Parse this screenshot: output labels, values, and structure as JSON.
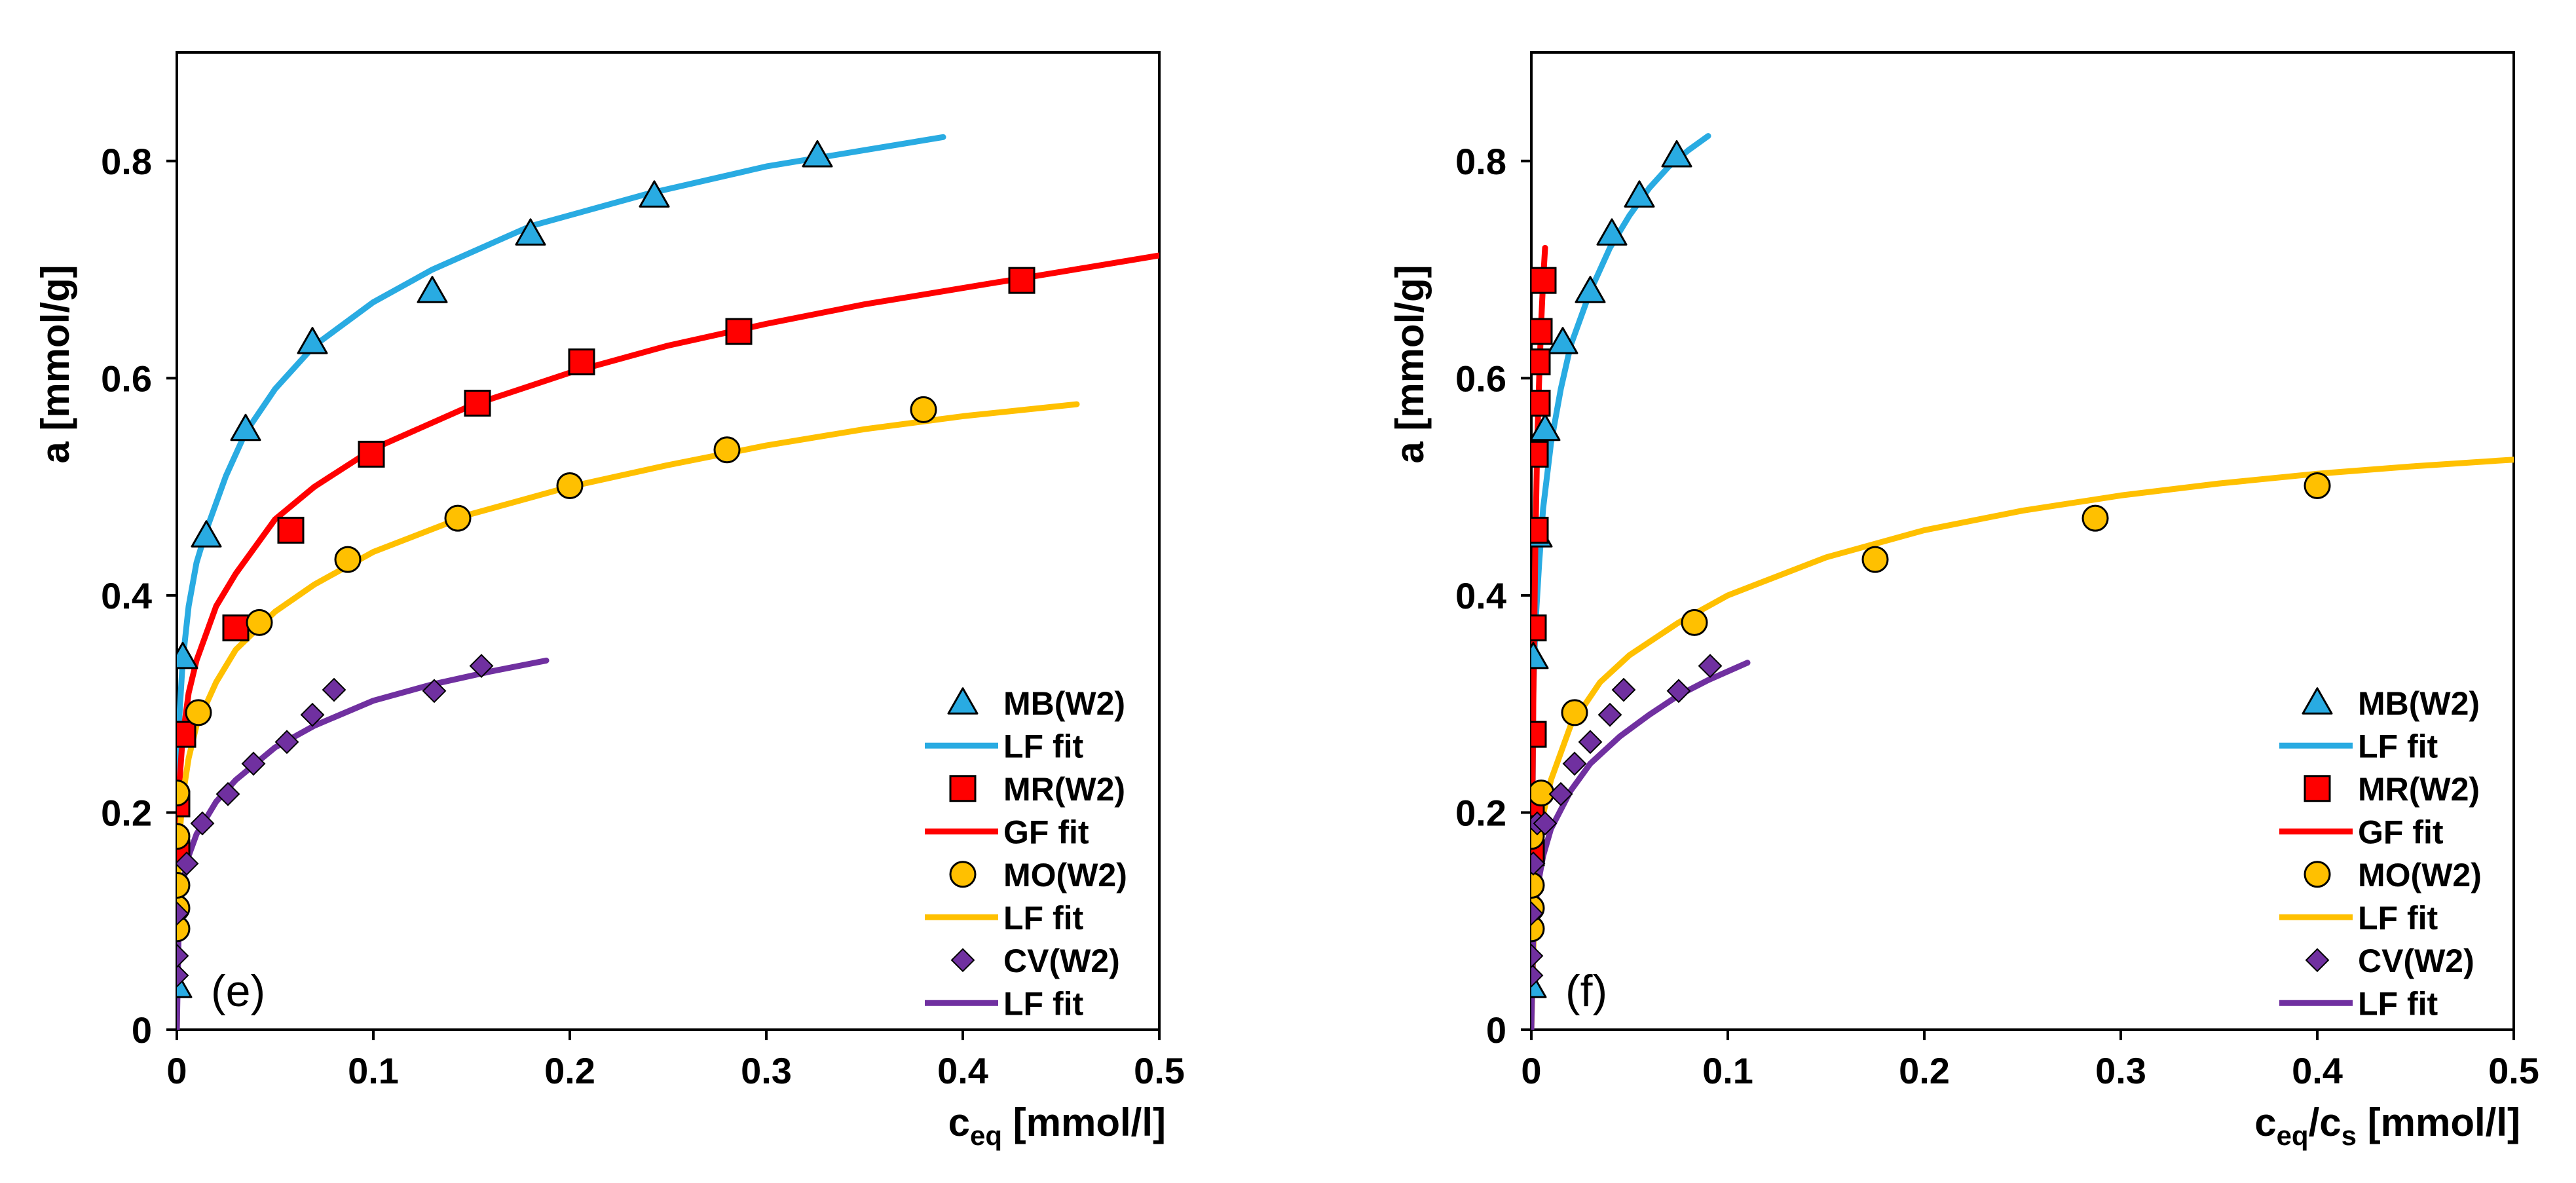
{
  "chart_data": [
    {
      "type": "scatter",
      "panel_label": "(e)",
      "xlabel": {
        "main": "c",
        "sub": "eq",
        "unit": " [mmol/l]"
      },
      "ylabel": "a [mmol/g]",
      "xlim": [
        0,
        0.5
      ],
      "ylim": [
        0,
        0.9
      ],
      "xticks": [
        0,
        0.1,
        0.2,
        0.3,
        0.4,
        0.5
      ],
      "xtick_labels": [
        "0",
        "0.1",
        "0.2",
        "0.3",
        "0.4",
        "0.5"
      ],
      "yticks": [
        0,
        0.2,
        0.4,
        0.6,
        0.8
      ],
      "ytick_labels": [
        "0",
        "0.2",
        "0.4",
        "0.6",
        "0.8"
      ],
      "legend_position": "bottom-right",
      "grid": false,
      "series": [
        {
          "name": "MB(W2)",
          "kind": "points",
          "marker": "triangle",
          "color": "#29ABE2",
          "x": [
            0,
            0.003,
            0.015,
            0.035,
            0.069,
            0.13,
            0.18,
            0.243,
            0.326
          ],
          "y": [
            0.04,
            0.343,
            0.455,
            0.553,
            0.633,
            0.68,
            0.733,
            0.768,
            0.805
          ]
        },
        {
          "name": "LF fit",
          "kind": "line",
          "color": "#29ABE2",
          "x": [
            0,
            0.001,
            0.003,
            0.006,
            0.01,
            0.015,
            0.025,
            0.035,
            0.05,
            0.07,
            0.1,
            0.13,
            0.18,
            0.24,
            0.3,
            0.35,
            0.39
          ],
          "y": [
            0,
            0.28,
            0.34,
            0.39,
            0.43,
            0.46,
            0.51,
            0.55,
            0.59,
            0.63,
            0.67,
            0.7,
            0.74,
            0.77,
            0.795,
            0.81,
            0.822
          ]
        },
        {
          "name": "MR(W2)",
          "kind": "points",
          "marker": "square",
          "color": "#FF0000",
          "x": [
            0,
            0,
            0.003,
            0.03,
            0.058,
            0.099,
            0.153,
            0.206,
            0.286,
            0.43
          ],
          "y": [
            0.163,
            0.208,
            0.272,
            0.37,
            0.46,
            0.53,
            0.577,
            0.615,
            0.643,
            0.69
          ]
        },
        {
          "name": "GF fit",
          "kind": "line",
          "color": "#FF0000",
          "x": [
            0,
            0.001,
            0.003,
            0.006,
            0.01,
            0.02,
            0.03,
            0.05,
            0.07,
            0.1,
            0.15,
            0.2,
            0.25,
            0.3,
            0.35,
            0.4,
            0.45,
            0.5
          ],
          "y": [
            0,
            0.22,
            0.27,
            0.31,
            0.34,
            0.39,
            0.42,
            0.47,
            0.5,
            0.535,
            0.575,
            0.605,
            0.63,
            0.65,
            0.668,
            0.683,
            0.698,
            0.713
          ]
        },
        {
          "name": "MO(W2)",
          "kind": "points",
          "marker": "circle",
          "color": "#FFC000",
          "x": [
            0,
            0,
            0,
            0,
            0,
            0.011,
            0.042,
            0.087,
            0.143,
            0.2,
            0.28,
            0.38
          ],
          "y": [
            0.093,
            0.112,
            0.133,
            0.178,
            0.218,
            0.292,
            0.375,
            0.433,
            0.471,
            0.501,
            0.534,
            0.571
          ]
        },
        {
          "name": "LF fit",
          "kind": "line",
          "color": "#FFC000",
          "x": [
            0,
            0.001,
            0.003,
            0.006,
            0.01,
            0.02,
            0.03,
            0.05,
            0.07,
            0.1,
            0.15,
            0.2,
            0.25,
            0.3,
            0.35,
            0.4,
            0.458
          ],
          "y": [
            0,
            0.17,
            0.215,
            0.25,
            0.28,
            0.32,
            0.35,
            0.385,
            0.41,
            0.44,
            0.475,
            0.5,
            0.52,
            0.538,
            0.553,
            0.565,
            0.576
          ]
        },
        {
          "name": "CV(W2)",
          "kind": "points",
          "marker": "diamond",
          "color": "#7030A0",
          "x": [
            0,
            0,
            0,
            0.005,
            0.013,
            0.026,
            0.039,
            0.056,
            0.069,
            0.08,
            0.131,
            0.155
          ],
          "y": [
            0.05,
            0.068,
            0.107,
            0.153,
            0.19,
            0.217,
            0.245,
            0.265,
            0.29,
            0.313,
            0.312,
            0.335
          ]
        },
        {
          "name": "LF fit",
          "kind": "line",
          "color": "#7030A0",
          "x": [
            0,
            0.001,
            0.003,
            0.006,
            0.01,
            0.02,
            0.03,
            0.05,
            0.07,
            0.1,
            0.13,
            0.16,
            0.188
          ],
          "y": [
            0,
            0.1,
            0.135,
            0.16,
            0.18,
            0.21,
            0.23,
            0.26,
            0.28,
            0.303,
            0.318,
            0.33,
            0.34
          ]
        }
      ]
    },
    {
      "type": "scatter",
      "panel_label": "(f)",
      "xlabel": {
        "main": "c",
        "sub1": "eq",
        "mid": "/c",
        "sub2": "s",
        "unit": " [mmol/l]"
      },
      "ylabel": "a [mmol/g]",
      "xlim": [
        0,
        0.5
      ],
      "ylim": [
        0,
        0.9
      ],
      "xticks": [
        0,
        0.1,
        0.2,
        0.3,
        0.4,
        0.5
      ],
      "xtick_labels": [
        "0",
        "0.1",
        "0.2",
        "0.3",
        "0.4",
        "0.5"
      ],
      "yticks": [
        0,
        0.2,
        0.4,
        0.6,
        0.8
      ],
      "ytick_labels": [
        "0",
        "0.2",
        "0.4",
        "0.6",
        "0.8"
      ],
      "legend_position": "bottom-right",
      "grid": false,
      "series": [
        {
          "name": "MB(W2)",
          "kind": "points",
          "marker": "triangle",
          "color": "#29ABE2",
          "x": [
            0,
            0.001,
            0.003,
            0.007,
            0.016,
            0.03,
            0.041,
            0.055,
            0.074
          ],
          "y": [
            0.04,
            0.343,
            0.455,
            0.553,
            0.633,
            0.68,
            0.733,
            0.768,
            0.805
          ]
        },
        {
          "name": "LF fit",
          "kind": "line",
          "color": "#29ABE2",
          "x": [
            0,
            0.001,
            0.002,
            0.004,
            0.006,
            0.01,
            0.015,
            0.02,
            0.03,
            0.04,
            0.05,
            0.06,
            0.07,
            0.08,
            0.09
          ],
          "y": [
            0,
            0.31,
            0.37,
            0.43,
            0.48,
            0.54,
            0.59,
            0.63,
            0.68,
            0.72,
            0.75,
            0.775,
            0.795,
            0.81,
            0.823
          ]
        },
        {
          "name": "MR(W2)",
          "kind": "points",
          "marker": "square",
          "color": "#FF0000",
          "x": [
            0,
            0,
            0.001,
            0.001,
            0.002,
            0.002,
            0.003,
            0.003,
            0.004,
            0.006
          ],
          "y": [
            0.163,
            0.208,
            0.272,
            0.37,
            0.46,
            0.53,
            0.577,
            0.615,
            0.643,
            0.69
          ]
        },
        {
          "name": "GF fit",
          "kind": "line",
          "color": "#FF0000",
          "x": [
            0,
            0.0005,
            0.001,
            0.002,
            0.003,
            0.004,
            0.005,
            0.006,
            0.007
          ],
          "y": [
            0,
            0.2,
            0.3,
            0.44,
            0.54,
            0.6,
            0.65,
            0.69,
            0.72
          ]
        },
        {
          "name": "MO(W2)",
          "kind": "points",
          "marker": "circle",
          "color": "#FFC000",
          "x": [
            0,
            0,
            0,
            0,
            0.005,
            0.022,
            0.083,
            0.175,
            0.287,
            0.4
          ],
          "y": [
            0.093,
            0.112,
            0.133,
            0.178,
            0.218,
            0.292,
            0.375,
            0.433,
            0.471,
            0.501
          ]
        },
        {
          "name": "LF fit",
          "kind": "line",
          "color": "#FFC000",
          "x": [
            0,
            0.002,
            0.005,
            0.01,
            0.02,
            0.035,
            0.05,
            0.075,
            0.1,
            0.15,
            0.2,
            0.25,
            0.3,
            0.35,
            0.4,
            0.45,
            0.5
          ],
          "y": [
            0,
            0.14,
            0.19,
            0.23,
            0.28,
            0.32,
            0.345,
            0.375,
            0.4,
            0.435,
            0.46,
            0.478,
            0.492,
            0.503,
            0.512,
            0.519,
            0.525
          ]
        },
        {
          "name": "CV(W2)",
          "kind": "points",
          "marker": "diamond",
          "color": "#7030A0",
          "x": [
            0,
            0,
            0,
            0.001,
            0.003,
            0.007,
            0.015,
            0.022,
            0.03,
            0.04,
            0.047,
            0.075,
            0.091
          ],
          "y": [
            0.05,
            0.068,
            0.107,
            0.153,
            0.19,
            0.19,
            0.217,
            0.245,
            0.265,
            0.29,
            0.313,
            0.312,
            0.335
          ]
        },
        {
          "name": "LF fit",
          "kind": "line",
          "color": "#7030A0",
          "x": [
            0,
            0.001,
            0.003,
            0.006,
            0.01,
            0.02,
            0.03,
            0.045,
            0.06,
            0.075,
            0.09,
            0.11
          ],
          "y": [
            0,
            0.09,
            0.13,
            0.16,
            0.185,
            0.22,
            0.245,
            0.27,
            0.29,
            0.308,
            0.322,
            0.338
          ]
        }
      ]
    }
  ]
}
